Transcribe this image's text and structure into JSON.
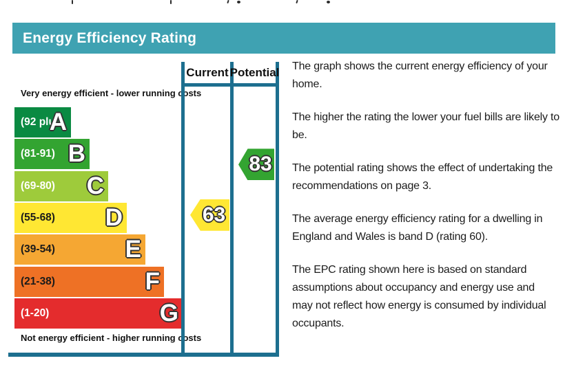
{
  "page": {
    "title_bar": {
      "label": "Energy Efficiency Rating",
      "bg_color": "#3fa2b2",
      "text_color": "#ffffff"
    }
  },
  "chart_data": {
    "type": "bar",
    "title": "Energy Efficiency Rating",
    "top_caption": "Very energy efficient - lower running costs",
    "bottom_caption": "Not energy efficient - higher running costs",
    "columns": [
      {
        "label": "Current"
      },
      {
        "label": "Potential"
      }
    ],
    "bands": [
      {
        "letter": "A",
        "range_label": "(92 plus)",
        "min": 92,
        "max": 100,
        "color": "#0a8a42",
        "label_color": "#ffffff"
      },
      {
        "letter": "B",
        "range_label": "(81-91)",
        "min": 81,
        "max": 91,
        "color": "#33a431",
        "label_color": "#ffffff"
      },
      {
        "letter": "C",
        "range_label": "(69-80)",
        "min": 69,
        "max": 80,
        "color": "#9ecb3b",
        "label_color": "#ffffff"
      },
      {
        "letter": "D",
        "range_label": "(55-68)",
        "min": 55,
        "max": 68,
        "color": "#ffe733",
        "label_color": "#1a1a1a"
      },
      {
        "letter": "E",
        "range_label": "(39-54)",
        "min": 39,
        "max": 54,
        "color": "#f5a733",
        "label_color": "#1a1a1a"
      },
      {
        "letter": "F",
        "range_label": "(21-38)",
        "min": 21,
        "max": 38,
        "color": "#ee7125",
        "label_color": "#1a1a1a"
      },
      {
        "letter": "G",
        "range_label": "(1-20)",
        "min": 1,
        "max": 20,
        "color": "#e42c2d",
        "label_color": "#ffffff"
      }
    ],
    "ratings": {
      "current": {
        "value": 63,
        "band": "D",
        "color": "#ffe733"
      },
      "potential": {
        "value": 83,
        "band": "B",
        "color": "#33a431"
      }
    },
    "border_color": "#1d6f8f",
    "ylim": [
      1,
      100
    ],
    "legend_position": "none",
    "grid": false
  },
  "description": {
    "paragraphs": [
      "The graph shows the current energy efficiency of your\nhome.",
      "The higher the rating the lower your fuel bills are likely to\nbe.",
      "The potential rating shows the effect of undertaking the\nrecommendations on page 3.",
      "The average energy efficiency rating for a dwelling in\nEngland and Wales is band D (rating 60).",
      "The EPC rating shown here is based on standard\nassumptions about occupancy and energy use and\nmay not reflect how energy is consumed by individual\noccupants."
    ]
  }
}
